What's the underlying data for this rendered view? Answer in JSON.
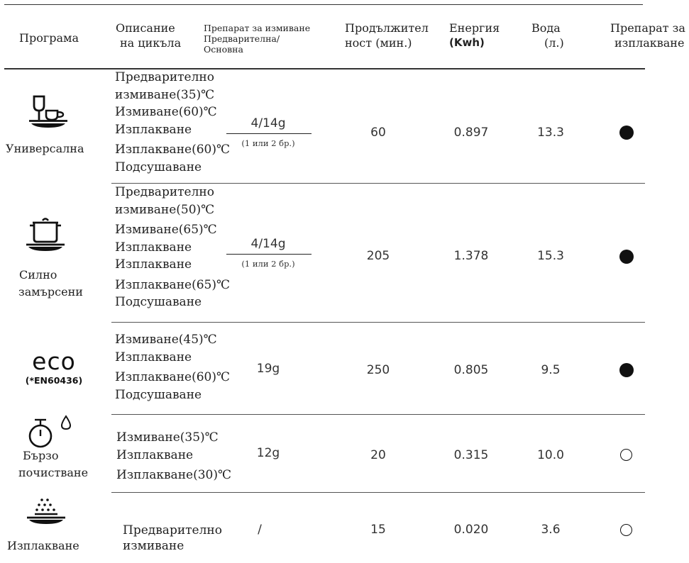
{
  "headers": {
    "program": "Програма",
    "description_line1": "Описание",
    "description_line2": "на цикъла",
    "detergent_line1": "Препарат за измиване",
    "detergent_line2": "Предварителна/",
    "detergent_line3": "Основна",
    "duration_line1": "Продължител",
    "duration_line2": "ност (мин.)",
    "energy_line1": "Енергия",
    "energy_line2": "(Kwh)",
    "water_line1": "Вода",
    "water_line2": "(л.)",
    "rinse_line1": "Препарат за",
    "rinse_line2": "изплакване"
  },
  "rows": [
    {
      "icon": "glass-cup-plate-icon",
      "name_line1": "Универсална",
      "name_line2": "",
      "desc": [
        "Предварително",
        "измиване(35)℃",
        "Измиване(60)℃",
        "Изплакване",
        "Изплакване(60)℃",
        "Подсушаване"
      ],
      "detergent": "4/14g",
      "detergent_note": "(1 или 2 бр.)",
      "duration": "60",
      "energy": "0.897",
      "water": "13.3",
      "rinse_aid": "filled"
    },
    {
      "icon": "pot-icon",
      "name_line1": "Силно",
      "name_line2": "замърсени",
      "desc": [
        "Предварително",
        "измиване(50)℃",
        "Измиване(65)℃",
        "Изплакване",
        "Изплакване",
        "Изплакване(65)℃",
        "Подсушаване"
      ],
      "detergent": "4/14g",
      "detergent_note": "(1 или 2 бр.)",
      "duration": "205",
      "energy": "1.378",
      "water": "15.3",
      "rinse_aid": "filled"
    },
    {
      "icon": "eco-label",
      "name_line1": "eco",
      "name_line2": "(*EN60436)",
      "desc": [
        "Измиване(45)℃",
        "Изплакване",
        "Изплакване(60)℃",
        "Подсушаване"
      ],
      "detergent": "19g",
      "detergent_note": "",
      "duration": "250",
      "energy": "0.805",
      "water": "9.5",
      "rinse_aid": "filled"
    },
    {
      "icon": "stopwatch-drop-icon",
      "name_line1": "Бързо",
      "name_line2": "почистване",
      "desc": [
        "Измиване(35)℃",
        "Изплакване",
        "Изплакване(30)℃"
      ],
      "detergent": "12g",
      "detergent_note": "",
      "duration": "20",
      "energy": "0.315",
      "water": "10.0",
      "rinse_aid": "empty"
    },
    {
      "icon": "rinse-spray-plate-icon",
      "name_line1": "Изплакване",
      "name_line2": "",
      "desc": [
        "Предварително",
        "измиване"
      ],
      "detergent": "/",
      "detergent_note": "",
      "duration": "15",
      "energy": "0.020",
      "water": "3.6",
      "rinse_aid": "empty"
    }
  ]
}
